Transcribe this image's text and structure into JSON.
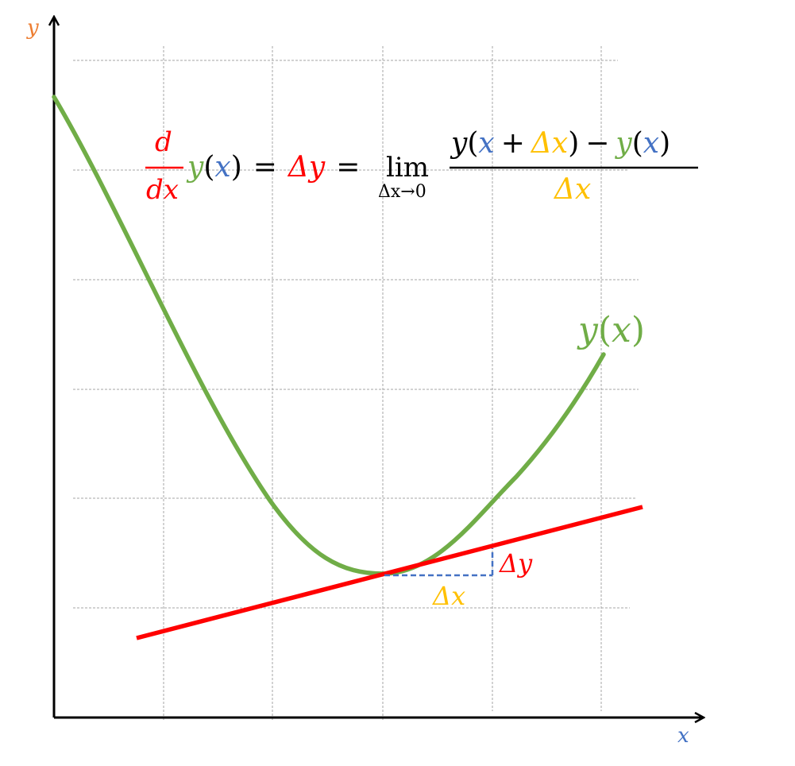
{
  "colors": {
    "curve": "#70ad47",
    "tangent": "#ff0000",
    "delta_x": "#ffc000",
    "x_var": "#4472c4",
    "y_axis_label": "#ed7d31",
    "text": "#000000",
    "grid": "#a6a6a6"
  },
  "axes": {
    "x_label": "x",
    "y_label": "y"
  },
  "curve_label": {
    "y": "y",
    "open": "(",
    "x": "x",
    "close": ")"
  },
  "triangle_labels": {
    "dy": "Δy",
    "dx": "Δx"
  },
  "equation": {
    "d_num": "d",
    "d_den": "dx",
    "fn_y": "y",
    "fn_open": "(",
    "fn_x": "x",
    "fn_close": ")",
    "equals1": "=",
    "delta_y": "Δy",
    "equals2": "=",
    "lim": "lim",
    "lim_sub": "Δx→0",
    "num_y1": "y",
    "num_open1": "(",
    "num_x": "x",
    "num_plus": "+",
    "num_dx": "Δx",
    "num_close1": ")",
    "num_minus": "−",
    "num_y2": "y",
    "num_open2": "(",
    "num_x2": "x",
    "num_close2": ")",
    "den_dx": "Δx"
  }
}
